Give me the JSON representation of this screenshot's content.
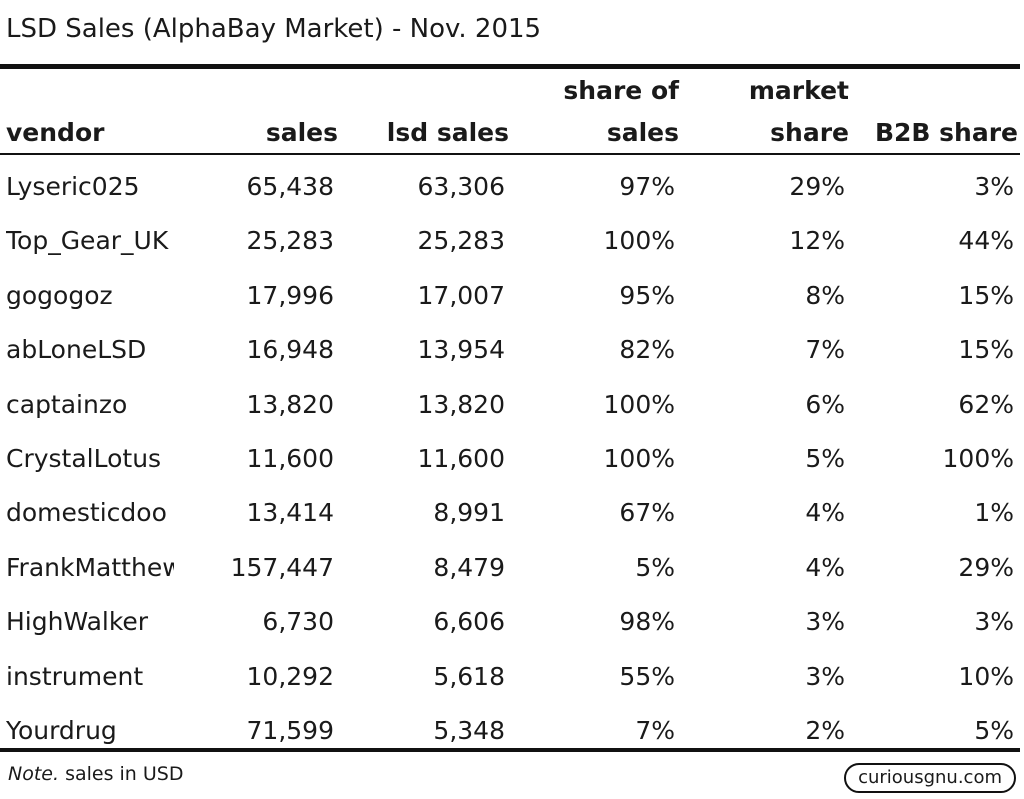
{
  "title": "LSD Sales (AlphaBay Market) - Nov. 2015",
  "columns": {
    "vendor": "vendor",
    "sales": "sales",
    "lsd_sales": "lsd sales",
    "share_of_sales_line1": "share of",
    "share_of_sales_line2": "sales",
    "market_share_line1": "market",
    "market_share_line2": "share",
    "b2b_share": "B2B share"
  },
  "rows": [
    {
      "vendor": "Lyseric025",
      "sales": "65,438",
      "lsd_sales": "63,306",
      "share_of_sales": "97%",
      "market_share": "29%",
      "b2b_share": "3%"
    },
    {
      "vendor": "Top_Gear_UK",
      "sales": "25,283",
      "lsd_sales": "25,283",
      "share_of_sales": "100%",
      "market_share": "12%",
      "b2b_share": "44%"
    },
    {
      "vendor": "gogogoz",
      "sales": "17,996",
      "lsd_sales": "17,007",
      "share_of_sales": "95%",
      "market_share": "8%",
      "b2b_share": "15%"
    },
    {
      "vendor": "abLoneLSD",
      "sales": "16,948",
      "lsd_sales": "13,954",
      "share_of_sales": "82%",
      "market_share": "7%",
      "b2b_share": "15%"
    },
    {
      "vendor": "captainzo",
      "sales": "13,820",
      "lsd_sales": "13,820",
      "share_of_sales": "100%",
      "market_share": "6%",
      "b2b_share": "62%"
    },
    {
      "vendor": "CrystalLotus",
      "sales": "11,600",
      "lsd_sales": "11,600",
      "share_of_sales": "100%",
      "market_share": "5%",
      "b2b_share": "100%"
    },
    {
      "vendor": "domesticdoo",
      "sales": "13,414",
      "lsd_sales": "8,991",
      "share_of_sales": "67%",
      "market_share": "4%",
      "b2b_share": "1%"
    },
    {
      "vendor": "FrankMatthew",
      "sales": "157,447",
      "lsd_sales": "8,479",
      "share_of_sales": "5%",
      "market_share": "4%",
      "b2b_share": "29%"
    },
    {
      "vendor": "HighWalker",
      "sales": "6,730",
      "lsd_sales": "6,606",
      "share_of_sales": "98%",
      "market_share": "3%",
      "b2b_share": "3%"
    },
    {
      "vendor": "instrument",
      "sales": "10,292",
      "lsd_sales": "5,618",
      "share_of_sales": "55%",
      "market_share": "3%",
      "b2b_share": "10%"
    },
    {
      "vendor": "Yourdrug",
      "sales": "71,599",
      "lsd_sales": "5,348",
      "share_of_sales": "7%",
      "market_share": "2%",
      "b2b_share": "5%"
    }
  ],
  "note": {
    "label": "Note.",
    "text": " sales in USD"
  },
  "brand": "curiousgnu.com"
}
